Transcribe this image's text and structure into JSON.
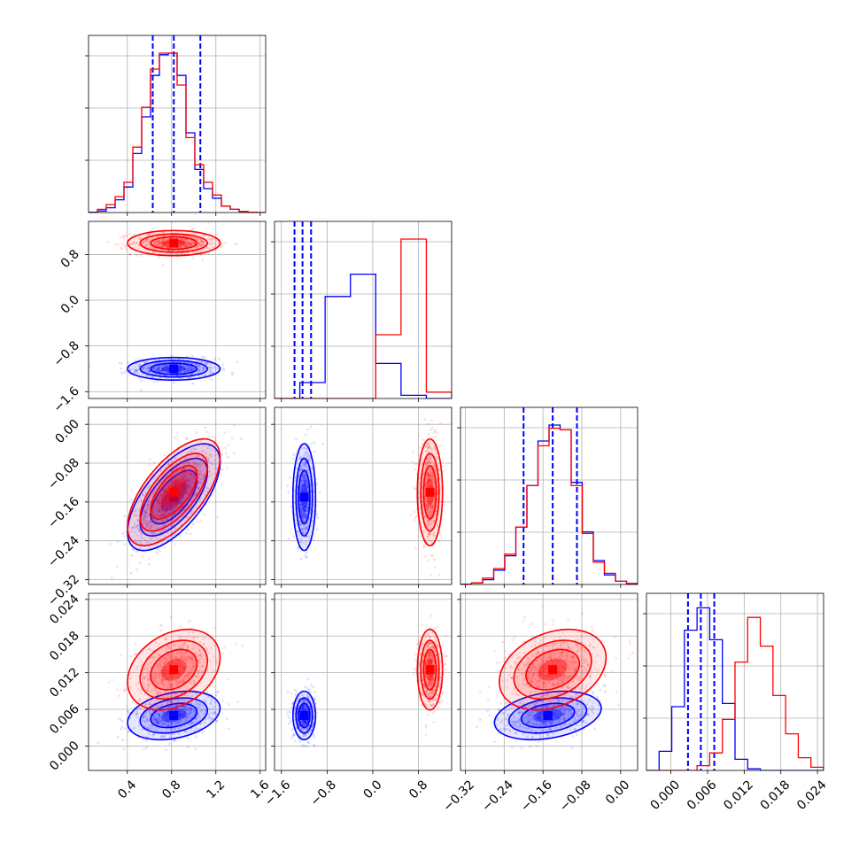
{
  "chart_data": {
    "type": "corner",
    "colors": {
      "blue": "#0000ff",
      "red": "#ff0000",
      "grid": "#b0b0b0"
    },
    "variables": [
      {
        "id": "p0",
        "range": [
          0.05,
          1.65
        ],
        "ticks": [
          0.4,
          0.8,
          1.2,
          1.6
        ],
        "tick_labels": [
          "0.4",
          "0.8",
          "1.2",
          "1.6"
        ]
      },
      {
        "id": "p1",
        "range": [
          -1.72,
          1.38
        ],
        "ticks": [
          -1.6,
          -0.8,
          0.0,
          0.8
        ],
        "tick_labels": [
          "−1.6",
          "−0.8",
          "0.0",
          "0.8"
        ]
      },
      {
        "id": "p2",
        "range": [
          -0.33,
          0.035
        ],
        "ticks": [
          -0.32,
          -0.24,
          -0.16,
          -0.08,
          0.0
        ],
        "tick_labels": [
          "−0.32",
          "−0.24",
          "−0.16",
          "−0.08",
          "0.00"
        ]
      },
      {
        "id": "p3",
        "range": [
          -0.004,
          0.025
        ],
        "ticks": [
          0.0,
          0.006,
          0.012,
          0.018,
          0.024
        ],
        "tick_labels": [
          "0.000",
          "0.006",
          "0.012",
          "0.018",
          "0.024"
        ]
      }
    ],
    "series": [
      {
        "color": "blue",
        "mean": [
          0.82,
          -1.2,
          -0.15,
          0.005
        ],
        "sd": [
          0.19,
          0.09,
          0.05,
          0.0018
        ],
        "quantiles": [
          [
            0.63,
            0.82,
            1.06
          ],
          [
            -1.37,
            -1.23,
            -1.08
          ],
          [
            -0.2,
            -0.14,
            -0.09
          ],
          [
            0.0028,
            0.0049,
            0.0071
          ]
        ],
        "hist": [
          [
            0.002,
            0.01,
            0.03,
            0.08,
            0.16,
            0.37,
            0.6,
            0.86,
            0.99,
            1.0,
            0.86,
            0.5,
            0.27,
            0.15,
            0.09,
            0.04,
            0.02,
            0.007,
            0.002,
            0.0
          ],
          [
            0.0,
            0.1,
            0.64,
            0.78,
            0.22,
            0.02,
            0.0
          ],
          [
            0.002,
            0.01,
            0.03,
            0.09,
            0.18,
            0.36,
            0.62,
            0.9,
            1.0,
            0.97,
            0.64,
            0.33,
            0.15,
            0.06,
            0.02,
            0.006
          ],
          [
            0.0,
            0.12,
            0.4,
            0.88,
            1.02,
            0.82,
            0.42,
            0.07,
            0.01,
            0.0,
            0.0,
            0.0,
            0.0,
            0.0
          ]
        ]
      },
      {
        "color": "red",
        "mean": [
          0.82,
          1.0,
          -0.14,
          0.0125
        ],
        "sd": [
          0.19,
          0.1,
          0.05,
          0.003
        ],
        "quantiles": [],
        "hist": [
          [
            0.0,
            0.02,
            0.05,
            0.1,
            0.19,
            0.41,
            0.66,
            0.9,
            1.0,
            1.0,
            0.8,
            0.47,
            0.3,
            0.19,
            0.11,
            0.04,
            0.02,
            0.006,
            0.002,
            0.0
          ],
          [
            0.0,
            0.0,
            0.0,
            0.0,
            0.4,
            1.0,
            0.04
          ],
          [
            0.001,
            0.01,
            0.04,
            0.1,
            0.19,
            0.36,
            0.62,
            0.87,
            0.98,
            0.97,
            0.62,
            0.32,
            0.14,
            0.07,
            0.02,
            0.003
          ],
          [
            0.0,
            0.0,
            0.0,
            0.0,
            0.03,
            0.11,
            0.32,
            0.68,
            0.96,
            0.78,
            0.47,
            0.23,
            0.08,
            0.02
          ]
        ]
      }
    ],
    "correlations": {
      "p0-p2": 0.65,
      "p0-p3": 0.3,
      "p2-p3": 0.3
    }
  }
}
